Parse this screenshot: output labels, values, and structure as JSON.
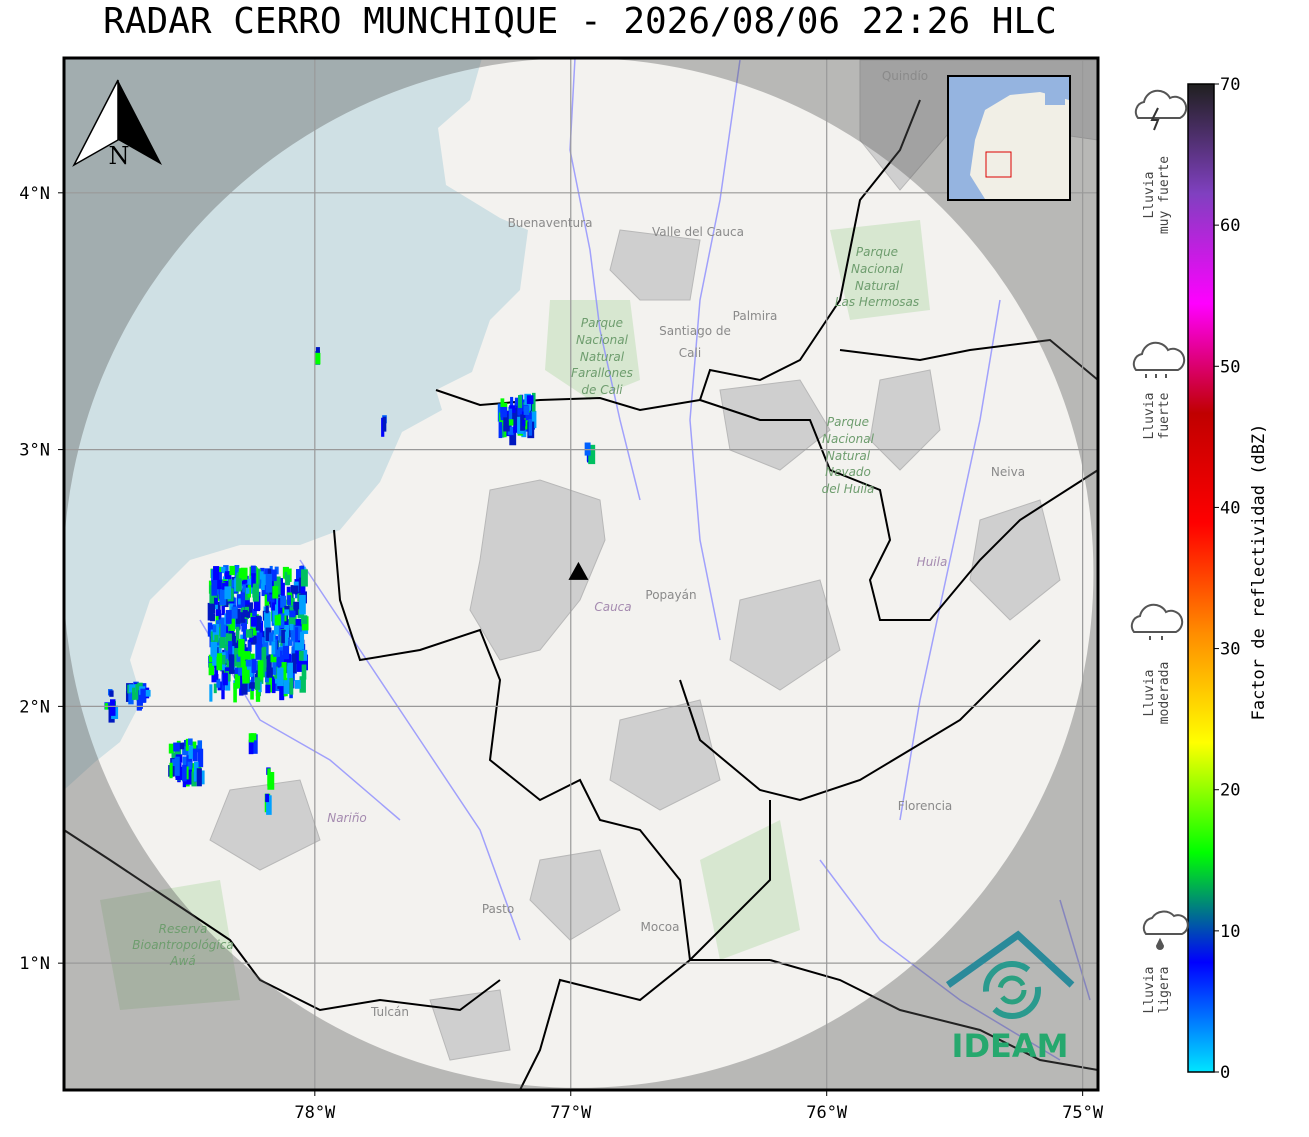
{
  "title": "RADAR CERRO MUNCHIQUE - 2026/08/06 22:26 HLC",
  "map": {
    "xlim": [
      -78.98,
      -74.94
    ],
    "ylim": [
      0.506,
      4.525
    ],
    "xticks": [
      {
        "value": -78,
        "label": "78°W"
      },
      {
        "value": -77,
        "label": "77°W"
      },
      {
        "value": -76,
        "label": "76°W"
      },
      {
        "value": -75,
        "label": "75°W"
      }
    ],
    "yticks": [
      {
        "value": 4,
        "label": "4°N"
      },
      {
        "value": 3,
        "label": "3°N"
      },
      {
        "value": 2,
        "label": "2°N"
      },
      {
        "value": 1,
        "label": "1°N"
      }
    ],
    "grid": true,
    "radar_site": {
      "lon": -76.97,
      "lat": 2.52
    }
  },
  "north_arrow": "N",
  "colorbar": {
    "label": "Factor de reflectividad (dBZ)",
    "ylim": [
      0,
      70
    ],
    "yticks": [
      0,
      10,
      20,
      30,
      40,
      50,
      60,
      70
    ],
    "colors": [
      "#00e5ff",
      "#0000ff",
      "#00ff00",
      "#ffff00",
      "#ff8c00",
      "#ff0000",
      "#c00000",
      "#ff00ff",
      "#8040c0",
      "#202020"
    ]
  },
  "rain_categories": [
    [
      "Lluvia",
      "muy fuerte"
    ],
    [
      "Lluvia",
      "fuerte"
    ],
    [
      "Lluvia",
      "moderada"
    ],
    [
      "Lluvia",
      "ligera"
    ]
  ],
  "map_labels": {
    "quindio": "Quindío",
    "buenaventura": "Buenaventura",
    "valle": "Valle del Cauca",
    "cali": [
      "Santiago de",
      "Cali"
    ],
    "palmira": "Palmira",
    "farallones": [
      "Parque",
      "Nacional",
      "Natural",
      "Farallones",
      "de Cali"
    ],
    "hermosas": [
      "Parque",
      "Nacional",
      "Natural",
      "Las Hermosas"
    ],
    "nevado": [
      "Parque",
      "Nacional",
      "Natural",
      "Nevado",
      "del Huila"
    ],
    "neiva": "Neiva",
    "huila": "Huila",
    "cauca": "Cauca",
    "popayan": "Popayán",
    "narino": "Nariño",
    "florencia": "Florencia",
    "pasto": "Pasto",
    "mocoa": "Mocoa",
    "tulcan": "Tulcán",
    "awa": [
      "Reserva",
      "Bioantropológica",
      "Awá"
    ]
  },
  "logo": "IDEAM"
}
